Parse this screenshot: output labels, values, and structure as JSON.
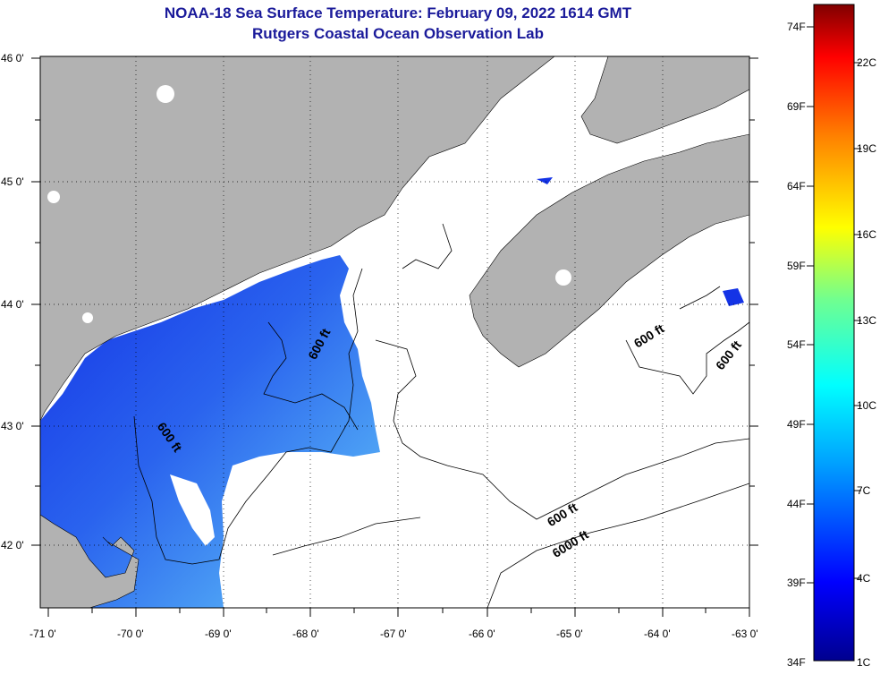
{
  "header": {
    "title": "NOAA-18 Sea Surface Temperature:  February 09, 2022 1614 GMT",
    "subtitle": "Rutgers Coastal Ocean Observation Lab"
  },
  "map": {
    "lon_labels": [
      "-71 0'",
      "-70 0'",
      "-69 0'",
      "-68 0'",
      "-67 0'",
      "-66 0'",
      "-65 0'",
      "-64 0'",
      "-63 0'"
    ],
    "lat_labels": [
      "46 0'",
      "45 0'",
      "44 0'",
      "43 0'",
      "42 0'"
    ],
    "contour_labels": [
      "600 ft",
      "600 ft",
      "600 ft",
      "600 ft",
      "600 ft",
      "6000 ft"
    ]
  },
  "colorbar": {
    "f_labels": [
      "74F",
      "69F",
      "64F",
      "59F",
      "54F",
      "49F",
      "44F",
      "39F",
      "34F"
    ],
    "c_labels": [
      "22C",
      "19C",
      "16C",
      "13C",
      "10C",
      "7C",
      "4C",
      "1C"
    ]
  },
  "colors": {
    "land": "#b2b2b2",
    "sea_cold": "#1f3fe0",
    "sea_mid": "#3b8ef0",
    "title": "#1a1a9a"
  }
}
